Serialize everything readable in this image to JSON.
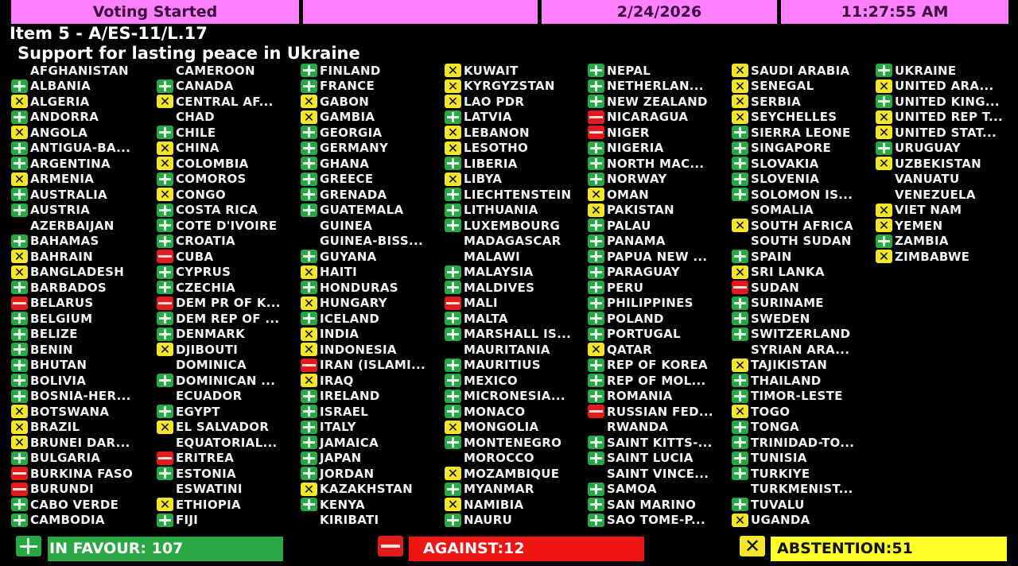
{
  "header": {
    "status": "Voting Started",
    "blank": "",
    "date": "2/24/2026",
    "time": "11:27:55 AM"
  },
  "item": {
    "number": "Item 5 - A/ES-11/L.17",
    "title": "Support for lasting peace in Ukraine"
  },
  "colors": {
    "header": "#ff80ff",
    "yes": "#27a745",
    "no": "#e21b1b",
    "abstain": "#f2e52a"
  },
  "icons": {
    "yes": "plus-icon",
    "no": "minus-icon",
    "abstain": "x-icon"
  },
  "columns": [
    [
      [
        "AFGHANISTAN",
        ""
      ],
      [
        "ALBANIA",
        "yes"
      ],
      [
        "ALGERIA",
        "abstain"
      ],
      [
        "ANDORRA",
        "yes"
      ],
      [
        "ANGOLA",
        "abstain"
      ],
      [
        "ANTIGUA-BA...",
        "yes"
      ],
      [
        "ARGENTINA",
        "yes"
      ],
      [
        "ARMENIA",
        "abstain"
      ],
      [
        "AUSTRALIA",
        "yes"
      ],
      [
        "AUSTRIA",
        "yes"
      ],
      [
        "AZERBAIJAN",
        ""
      ],
      [
        "BAHAMAS",
        "yes"
      ],
      [
        "BAHRAIN",
        "abstain"
      ],
      [
        "BANGLADESH",
        "abstain"
      ],
      [
        "BARBADOS",
        "yes"
      ],
      [
        "BELARUS",
        "no"
      ],
      [
        "BELGIUM",
        "yes"
      ],
      [
        "BELIZE",
        "yes"
      ],
      [
        "BENIN",
        "yes"
      ],
      [
        "BHUTAN",
        "yes"
      ],
      [
        "BOLIVIA",
        "yes"
      ],
      [
        "BOSNIA-HER...",
        "yes"
      ],
      [
        "BOTSWANA",
        "abstain"
      ],
      [
        "BRAZIL",
        "abstain"
      ],
      [
        "BRUNEI DAR...",
        "abstain"
      ],
      [
        "BULGARIA",
        "yes"
      ],
      [
        "BURKINA FASO",
        "no"
      ],
      [
        "BURUNDI",
        "no"
      ],
      [
        "CABO VERDE",
        "yes"
      ],
      [
        "CAMBODIA",
        "yes"
      ]
    ],
    [
      [
        "CAMEROON",
        ""
      ],
      [
        "CANADA",
        "yes"
      ],
      [
        "CENTRAL AF...",
        "abstain"
      ],
      [
        "CHAD",
        ""
      ],
      [
        "CHILE",
        "yes"
      ],
      [
        "CHINA",
        "abstain"
      ],
      [
        "COLOMBIA",
        "abstain"
      ],
      [
        "COMOROS",
        "yes"
      ],
      [
        "CONGO",
        "abstain"
      ],
      [
        "COSTA RICA",
        "yes"
      ],
      [
        "COTE D'IVOIRE",
        "yes"
      ],
      [
        "CROATIA",
        "yes"
      ],
      [
        "CUBA",
        "no"
      ],
      [
        "CYPRUS",
        "yes"
      ],
      [
        "CZECHIA",
        "yes"
      ],
      [
        "DEM PR OF K...",
        "no"
      ],
      [
        "DEM REP OF ...",
        "yes"
      ],
      [
        "DENMARK",
        "yes"
      ],
      [
        "DJIBOUTI",
        "abstain"
      ],
      [
        "DOMINICA",
        ""
      ],
      [
        "DOMINICAN ...",
        "yes"
      ],
      [
        "ECUADOR",
        ""
      ],
      [
        "EGYPT",
        "yes"
      ],
      [
        "EL SALVADOR",
        "abstain"
      ],
      [
        "EQUATORIAL...",
        ""
      ],
      [
        "ERITREA",
        "no"
      ],
      [
        "ESTONIA",
        "yes"
      ],
      [
        "ESWATINI",
        ""
      ],
      [
        "ETHIOPIA",
        "abstain"
      ],
      [
        "FIJI",
        "yes"
      ]
    ],
    [
      [
        "FINLAND",
        "yes"
      ],
      [
        "FRANCE",
        "yes"
      ],
      [
        "GABON",
        "abstain"
      ],
      [
        "GAMBIA",
        "abstain"
      ],
      [
        "GEORGIA",
        "yes"
      ],
      [
        "GERMANY",
        "yes"
      ],
      [
        "GHANA",
        "yes"
      ],
      [
        "GREECE",
        "yes"
      ],
      [
        "GRENADA",
        "yes"
      ],
      [
        "GUATEMALA",
        "yes"
      ],
      [
        "GUINEA",
        ""
      ],
      [
        "GUINEA-BISS...",
        ""
      ],
      [
        "GUYANA",
        "yes"
      ],
      [
        "HAITI",
        "abstain"
      ],
      [
        "HONDURAS",
        "yes"
      ],
      [
        "HUNGARY",
        "abstain"
      ],
      [
        "ICELAND",
        "yes"
      ],
      [
        "INDIA",
        "abstain"
      ],
      [
        "INDONESIA",
        "abstain"
      ],
      [
        "IRAN (ISLAMI...",
        "no"
      ],
      [
        "IRAQ",
        "abstain"
      ],
      [
        "IRELAND",
        "yes"
      ],
      [
        "ISRAEL",
        "yes"
      ],
      [
        "ITALY",
        "yes"
      ],
      [
        "JAMAICA",
        "yes"
      ],
      [
        "JAPAN",
        "yes"
      ],
      [
        "JORDAN",
        "yes"
      ],
      [
        "KAZAKHSTAN",
        "abstain"
      ],
      [
        "KENYA",
        "yes"
      ],
      [
        "KIRIBATI",
        ""
      ]
    ],
    [
      [
        "KUWAIT",
        "abstain"
      ],
      [
        "KYRGYZSTAN",
        "abstain"
      ],
      [
        "LAO PDR",
        "abstain"
      ],
      [
        "LATVIA",
        "yes"
      ],
      [
        "LEBANON",
        "abstain"
      ],
      [
        "LESOTHO",
        "abstain"
      ],
      [
        "LIBERIA",
        "yes"
      ],
      [
        "LIBYA",
        "abstain"
      ],
      [
        "LIECHTENSTEIN",
        "yes"
      ],
      [
        "LITHUANIA",
        "yes"
      ],
      [
        "LUXEMBOURG",
        "yes"
      ],
      [
        "MADAGASCAR",
        ""
      ],
      [
        "MALAWI",
        ""
      ],
      [
        "MALAYSIA",
        "yes"
      ],
      [
        "MALDIVES",
        "yes"
      ],
      [
        "MALI",
        "no"
      ],
      [
        "MALTA",
        "yes"
      ],
      [
        "MARSHALL IS...",
        "yes"
      ],
      [
        "MAURITANIA",
        ""
      ],
      [
        "MAURITIUS",
        "yes"
      ],
      [
        "MEXICO",
        "yes"
      ],
      [
        "MICRONESIA...",
        "yes"
      ],
      [
        "MONACO",
        "yes"
      ],
      [
        "MONGOLIA",
        "abstain"
      ],
      [
        "MONTENEGRO",
        "yes"
      ],
      [
        "MOROCCO",
        ""
      ],
      [
        "MOZAMBIQUE",
        "abstain"
      ],
      [
        "MYANMAR",
        "yes"
      ],
      [
        "NAMIBIA",
        "abstain"
      ],
      [
        "NAURU",
        "yes"
      ]
    ],
    [
      [
        "NEPAL",
        "yes"
      ],
      [
        "NETHERLAN...",
        "yes"
      ],
      [
        "NEW ZEALAND",
        "yes"
      ],
      [
        "NICARAGUA",
        "no"
      ],
      [
        "NIGER",
        "no"
      ],
      [
        "NIGERIA",
        "yes"
      ],
      [
        "NORTH MAC...",
        "yes"
      ],
      [
        "NORWAY",
        "yes"
      ],
      [
        "OMAN",
        "abstain"
      ],
      [
        "PAKISTAN",
        "abstain"
      ],
      [
        "PALAU",
        "yes"
      ],
      [
        "PANAMA",
        "yes"
      ],
      [
        "PAPUA NEW ...",
        "yes"
      ],
      [
        "PARAGUAY",
        "yes"
      ],
      [
        "PERU",
        "yes"
      ],
      [
        "PHILIPPINES",
        "yes"
      ],
      [
        "POLAND",
        "yes"
      ],
      [
        "PORTUGAL",
        "yes"
      ],
      [
        "QATAR",
        "abstain"
      ],
      [
        "REP OF KOREA",
        "yes"
      ],
      [
        "REP OF MOL...",
        "yes"
      ],
      [
        "ROMANIA",
        "yes"
      ],
      [
        "RUSSIAN FED...",
        "no"
      ],
      [
        "RWANDA",
        ""
      ],
      [
        "SAINT KITTS-...",
        "yes"
      ],
      [
        "SAINT LUCIA",
        "yes"
      ],
      [
        "SAINT VINCE...",
        ""
      ],
      [
        "SAMOA",
        "yes"
      ],
      [
        "SAN MARINO",
        "yes"
      ],
      [
        "SAO TOME-P...",
        "yes"
      ]
    ],
    [
      [
        "SAUDI ARABIA",
        "abstain"
      ],
      [
        "SENEGAL",
        "abstain"
      ],
      [
        "SERBIA",
        "abstain"
      ],
      [
        "SEYCHELLES",
        "abstain"
      ],
      [
        "SIERRA LEONE",
        "yes"
      ],
      [
        "SINGAPORE",
        "yes"
      ],
      [
        "SLOVAKIA",
        "yes"
      ],
      [
        "SLOVENIA",
        "yes"
      ],
      [
        "SOLOMON IS...",
        "yes"
      ],
      [
        "SOMALIA",
        ""
      ],
      [
        "SOUTH AFRICA",
        "abstain"
      ],
      [
        "SOUTH SUDAN",
        ""
      ],
      [
        "SPAIN",
        "yes"
      ],
      [
        "SRI LANKA",
        "abstain"
      ],
      [
        "SUDAN",
        "no"
      ],
      [
        "SURINAME",
        "yes"
      ],
      [
        "SWEDEN",
        "yes"
      ],
      [
        "SWITZERLAND",
        "yes"
      ],
      [
        "SYRIAN ARA...",
        ""
      ],
      [
        "TAJIKISTAN",
        "abstain"
      ],
      [
        "THAILAND",
        "yes"
      ],
      [
        "TIMOR-LESTE",
        "yes"
      ],
      [
        "TOGO",
        "abstain"
      ],
      [
        "TONGA",
        "yes"
      ],
      [
        "TRINIDAD-TO...",
        "yes"
      ],
      [
        "TUNISIA",
        "yes"
      ],
      [
        "TURKIYE",
        "yes"
      ],
      [
        "TURKMENIST...",
        ""
      ],
      [
        "TUVALU",
        "yes"
      ],
      [
        "UGANDA",
        "abstain"
      ]
    ],
    [
      [
        "UKRAINE",
        "yes"
      ],
      [
        "UNITED ARA...",
        "abstain"
      ],
      [
        "UNITED KING...",
        "yes"
      ],
      [
        "UNITED REP T...",
        "abstain"
      ],
      [
        "UNITED STAT...",
        "abstain"
      ],
      [
        "URUGUAY",
        "yes"
      ],
      [
        "UZBEKISTAN",
        "abstain"
      ],
      [
        "VANUATU",
        ""
      ],
      [
        "VENEZUELA",
        ""
      ],
      [
        "VIET NAM",
        "abstain"
      ],
      [
        "YEMEN",
        "abstain"
      ],
      [
        "ZAMBIA",
        "yes"
      ],
      [
        "ZIMBABWE",
        "abstain"
      ]
    ]
  ],
  "totals": {
    "in_favour": "IN FAVOUR: 107",
    "against": "AGAINST:12",
    "abstention": "ABSTENTION:51"
  }
}
